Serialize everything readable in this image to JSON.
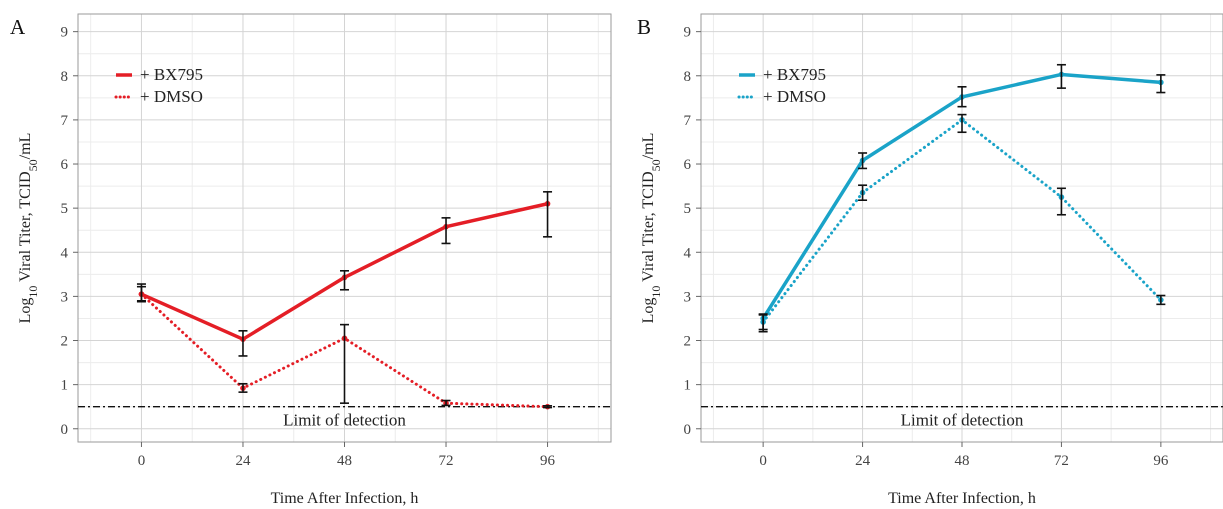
{
  "chart_data": [
    {
      "panel_label": "A",
      "type": "line",
      "xlabel": "Time After Infection, h",
      "ylabel_parts": [
        "Log",
        "10",
        " Viral Titer, TCID",
        "50",
        "/mL"
      ],
      "x": [
        0,
        24,
        48,
        72,
        96
      ],
      "xlim": [
        -15,
        111
      ],
      "ylim": [
        -0.3,
        9.4
      ],
      "xticks": [
        0,
        24,
        48,
        72,
        96
      ],
      "yticks": [
        0,
        1,
        2,
        3,
        4,
        5,
        6,
        7,
        8,
        9
      ],
      "grid": true,
      "legend_position": "top-left",
      "limit_of_detection": {
        "value": 0.5,
        "label": "Limit of detection"
      },
      "series": [
        {
          "name": "+ BX795",
          "style": "solid",
          "color": "#e41e26",
          "values": [
            3.05,
            2.03,
            3.43,
            4.58,
            5.1
          ],
          "error_low": [
            2.88,
            1.65,
            3.15,
            4.2,
            4.35
          ],
          "error_high": [
            3.22,
            2.22,
            3.58,
            4.78,
            5.37
          ]
        },
        {
          "name": "+ DMSO",
          "style": "dotted",
          "color": "#e41e26",
          "values": [
            3.05,
            0.92,
            2.05,
            0.58,
            0.5
          ],
          "error_low": [
            2.9,
            0.83,
            0.58,
            0.53,
            0.48
          ],
          "error_high": [
            3.28,
            1.02,
            2.36,
            0.64,
            0.52
          ]
        }
      ]
    },
    {
      "panel_label": "B",
      "type": "line",
      "xlabel": "Time After Infection, h",
      "ylabel_parts": [
        "Log",
        "10",
        " Viral Titer, TCID",
        "50",
        "/mL"
      ],
      "x": [
        0,
        24,
        48,
        72,
        96
      ],
      "xlim": [
        -15,
        111
      ],
      "ylim": [
        -0.3,
        9.4
      ],
      "xticks": [
        0,
        24,
        48,
        72,
        96
      ],
      "yticks": [
        0,
        1,
        2,
        3,
        4,
        5,
        6,
        7,
        8,
        9
      ],
      "grid": true,
      "legend_position": "top-left",
      "limit_of_detection": {
        "value": 0.5,
        "label": "Limit of detection"
      },
      "series": [
        {
          "name": "+ BX795",
          "style": "solid",
          "color": "#1aa3c8",
          "values": [
            2.5,
            6.08,
            7.52,
            8.03,
            7.85
          ],
          "error_low": [
            2.25,
            5.9,
            7.3,
            7.72,
            7.62
          ],
          "error_high": [
            2.6,
            6.25,
            7.75,
            8.25,
            8.02
          ]
        },
        {
          "name": "+ DMSO",
          "style": "dotted",
          "color": "#1aa3c8",
          "values": [
            2.42,
            5.35,
            7.0,
            5.25,
            2.92
          ],
          "error_low": [
            2.2,
            5.18,
            6.72,
            4.85,
            2.82
          ],
          "error_high": [
            2.58,
            5.52,
            7.12,
            5.45,
            3.02
          ]
        }
      ]
    }
  ]
}
